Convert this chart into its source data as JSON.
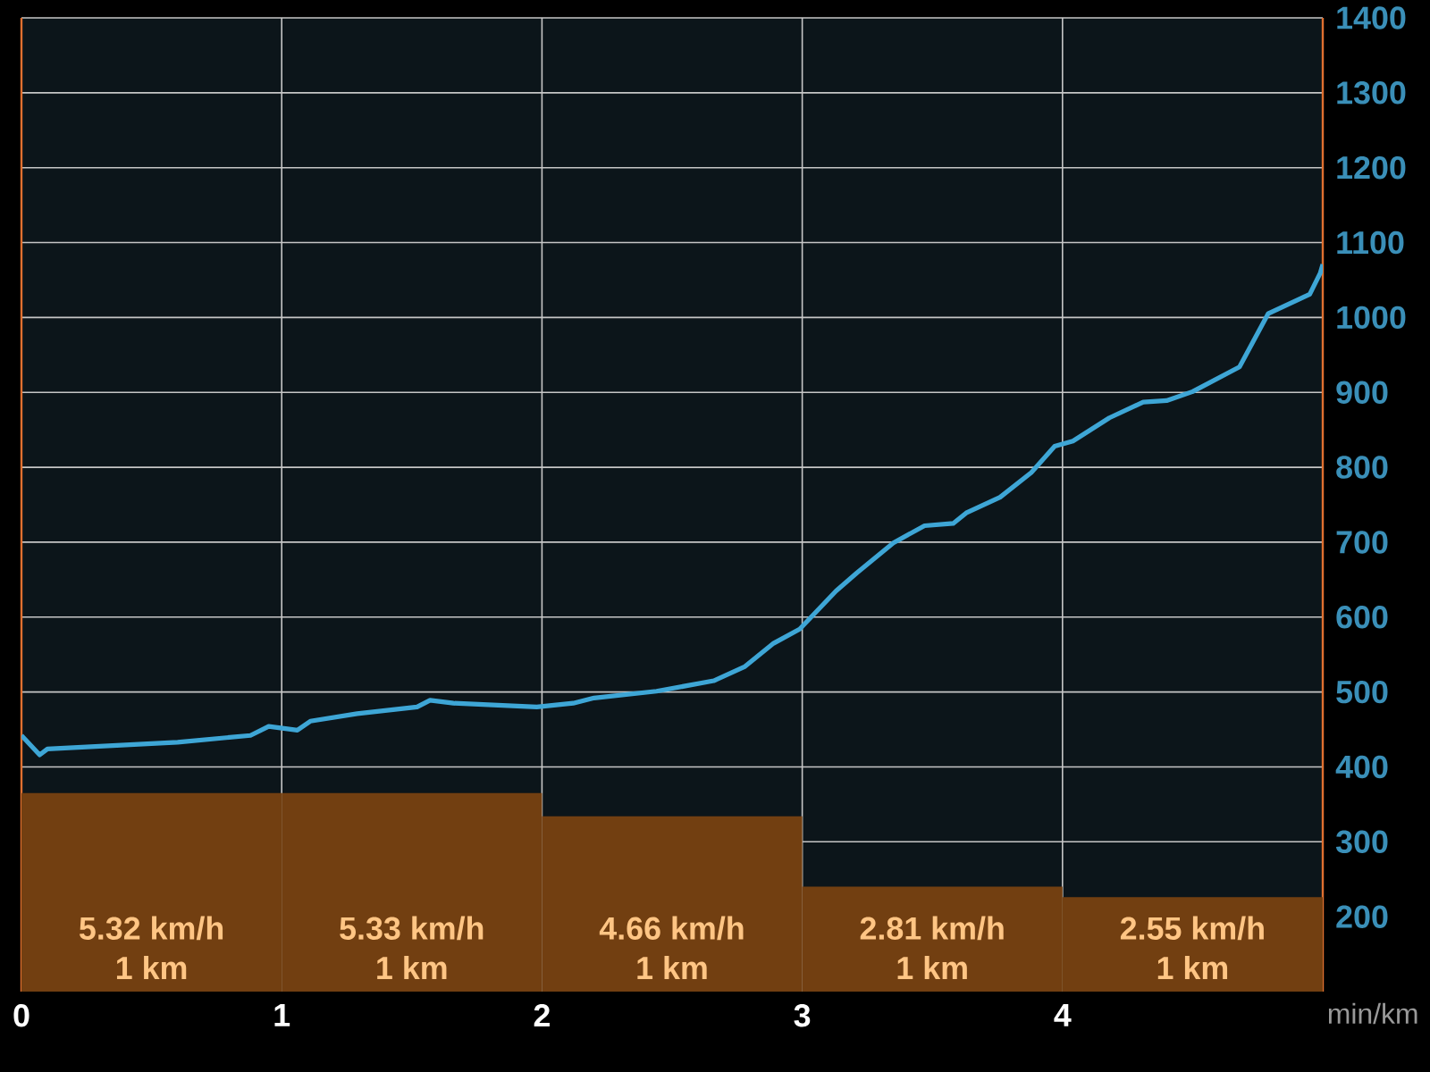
{
  "chart_data": {
    "type": "line",
    "xlabel": "min/km",
    "xlim": [
      0,
      5
    ],
    "xticks": [
      0,
      1,
      2,
      3,
      4
    ],
    "ylim": [
      100,
      1400
    ],
    "yticks": [
      200,
      300,
      400,
      500,
      600,
      700,
      800,
      900,
      1000,
      1100,
      1200,
      1300,
      1400
    ],
    "grid": true,
    "series": [
      {
        "type": "bar",
        "color": "#723f11",
        "x": [
          0.5,
          1.5,
          2.5,
          3.5,
          4.5
        ],
        "values": [
          365,
          365,
          334,
          240,
          226
        ]
      },
      {
        "color": "#3ea6d6",
        "x": [
          0,
          0.07,
          0.1,
          0.6,
          0.88,
          0.95,
          1.06,
          1.11,
          1.29,
          1.52,
          1.57,
          1.66,
          1.98,
          2.12,
          2.2,
          2.44,
          2.66,
          2.78,
          2.89,
          2.99,
          3.13,
          3.21,
          3.35,
          3.47,
          3.58,
          3.63,
          3.76,
          3.88,
          3.97,
          4.04,
          4.18,
          4.31,
          4.4,
          4.5,
          4.68,
          4.79,
          4.95,
          4.99,
          5.0
        ],
        "values": [
          442,
          416,
          424,
          433,
          442,
          454,
          449,
          461,
          471,
          480,
          489,
          485,
          480,
          485,
          492,
          501,
          515,
          534,
          565,
          584,
          635,
          659,
          699,
          722,
          725,
          739,
          760,
          793,
          828,
          835,
          866,
          887,
          889,
          901,
          934,
          1005,
          1031,
          1059,
          1071
        ]
      }
    ],
    "annotations": [
      "5.32 km/h",
      "1 km",
      "5.33 km/h",
      "1 km",
      "4.66 km/h",
      "1 km",
      "2.81 km/h",
      "1 km",
      "2.55 km/h",
      "1 km"
    ]
  }
}
